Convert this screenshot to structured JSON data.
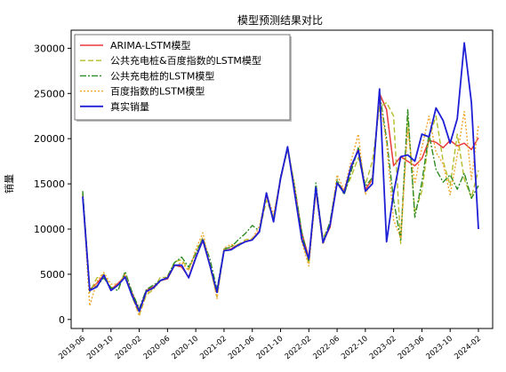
{
  "chart_data": {
    "type": "line",
    "title": "模型预测结果对比",
    "ylabel": "销量",
    "xlabel": "",
    "ylim": [
      -1000,
      32000
    ],
    "yticks": [
      0,
      5000,
      10000,
      15000,
      20000,
      25000,
      30000
    ],
    "xtick_labels": [
      "2019-06",
      "2019-10",
      "2020-02",
      "2020-06",
      "2020-10",
      "2021-02",
      "2021-06",
      "2021-10",
      "2022-02",
      "2022-06",
      "2022-10",
      "2023-02",
      "2023-06",
      "2023-10",
      "2024-02"
    ],
    "legend_position": "upper-left",
    "grid": false,
    "x": [
      "2019-06",
      "2019-07",
      "2019-08",
      "2019-09",
      "2019-10",
      "2019-11",
      "2019-12",
      "2020-01",
      "2020-02",
      "2020-03",
      "2020-04",
      "2020-05",
      "2020-06",
      "2020-07",
      "2020-08",
      "2020-09",
      "2020-10",
      "2020-11",
      "2020-12",
      "2021-01",
      "2021-02",
      "2021-03",
      "2021-04",
      "2021-05",
      "2021-06",
      "2021-07",
      "2021-08",
      "2021-09",
      "2021-10",
      "2021-11",
      "2021-12",
      "2022-01",
      "2022-02",
      "2022-03",
      "2022-04",
      "2022-05",
      "2022-06",
      "2022-07",
      "2022-08",
      "2022-09",
      "2022-10",
      "2022-11",
      "2022-12",
      "2023-01",
      "2023-02",
      "2023-03",
      "2023-04",
      "2023-05",
      "2023-06",
      "2023-07",
      "2023-08",
      "2023-09",
      "2023-10",
      "2023-11",
      "2023-12",
      "2024-01",
      "2024-02"
    ],
    "series": [
      {
        "name": "ARIMA-LSTM模型",
        "color": "#e8393b",
        "dash": "solid",
        "width": 1.5,
        "values": [
          13800,
          3300,
          4000,
          4900,
          3300,
          4000,
          4800,
          2900,
          1000,
          3200,
          3600,
          4300,
          4500,
          6000,
          5800,
          4700,
          6900,
          8700,
          6000,
          3000,
          7600,
          7800,
          8300,
          8600,
          8800,
          9800,
          13800,
          11000,
          15500,
          19000,
          14500,
          9600,
          6800,
          14300,
          8600,
          10200,
          15200,
          14200,
          16800,
          18900,
          14400,
          15500,
          25000,
          23200,
          17000,
          18000,
          17500,
          17000,
          17800,
          19800,
          19600,
          19000,
          19800,
          19200,
          19500,
          18800,
          20100
        ]
      },
      {
        "name": "公共充电桩&百度指数的LSTM模型",
        "color": "#b5bd2a",
        "dash": "6,3",
        "width": 1.4,
        "values": [
          14000,
          3000,
          4600,
          5000,
          3500,
          3800,
          4900,
          2500,
          500,
          2700,
          3300,
          4700,
          4600,
          6400,
          6600,
          5500,
          7400,
          9100,
          5900,
          2500,
          7600,
          8100,
          8300,
          8800,
          9000,
          9700,
          13200,
          11200,
          15700,
          19100,
          14800,
          8900,
          6200,
          14600,
          9000,
          10500,
          15200,
          14100,
          15800,
          17900,
          14900,
          17500,
          23500,
          24000,
          22500,
          8400,
          22500,
          11800,
          14200,
          20000,
          22500,
          17500,
          14800,
          20500,
          15500,
          13500,
          16500
        ]
      },
      {
        "name": "公共充电桩的LSTM模型",
        "color": "#2e8b23",
        "dash": "7,2,2,2",
        "width": 1.4,
        "values": [
          14200,
          3300,
          3700,
          4600,
          3500,
          3200,
          5300,
          3000,
          1200,
          3300,
          3800,
          4300,
          4800,
          6300,
          6900,
          5800,
          7300,
          8900,
          6700,
          3300,
          7800,
          8000,
          8800,
          9500,
          10400,
          9800,
          14000,
          11000,
          15800,
          18800,
          14700,
          9700,
          6400,
          15100,
          8600,
          10800,
          15500,
          13800,
          16400,
          19000,
          14700,
          15700,
          25000,
          20000,
          13200,
          8800,
          23200,
          11300,
          15200,
          20500,
          16600,
          15200,
          16000,
          14400,
          16200,
          13400,
          14800
        ]
      },
      {
        "name": "百度指数的LSTM模型",
        "color": "#f2a52b",
        "dash": "2,2",
        "width": 1.4,
        "values": [
          13600,
          1500,
          4200,
          5200,
          3900,
          3900,
          5000,
          2600,
          400,
          2900,
          3400,
          4200,
          4800,
          5900,
          6300,
          5400,
          7700,
          9600,
          6100,
          2300,
          7900,
          8300,
          8100,
          8700,
          8900,
          10300,
          13900,
          11600,
          15600,
          18800,
          14700,
          8600,
          5900,
          14000,
          8300,
          10400,
          16000,
          14300,
          17600,
          20500,
          13800,
          15600,
          24500,
          19500,
          11000,
          9000,
          21000,
          15000,
          19000,
          22500,
          18500,
          17200,
          13800,
          18200,
          23000,
          15500,
          21500
        ]
      },
      {
        "name": "真实销量",
        "color": "#1f1fd6",
        "dash": "solid",
        "width": 1.8,
        "values": [
          13600,
          3200,
          3600,
          4900,
          3200,
          3800,
          4700,
          2600,
          900,
          3100,
          3500,
          4300,
          4600,
          6000,
          6000,
          4600,
          6800,
          8800,
          6000,
          3000,
          7600,
          7700,
          8200,
          8600,
          8800,
          9700,
          14000,
          10800,
          15600,
          19100,
          13900,
          8900,
          6700,
          14600,
          8500,
          10400,
          15100,
          14000,
          17000,
          18700,
          14200,
          15000,
          25500,
          8600,
          14000,
          18000,
          18200,
          17500,
          20500,
          20200,
          23400,
          22000,
          19500,
          22200,
          30600,
          24000,
          10000
        ]
      }
    ]
  }
}
